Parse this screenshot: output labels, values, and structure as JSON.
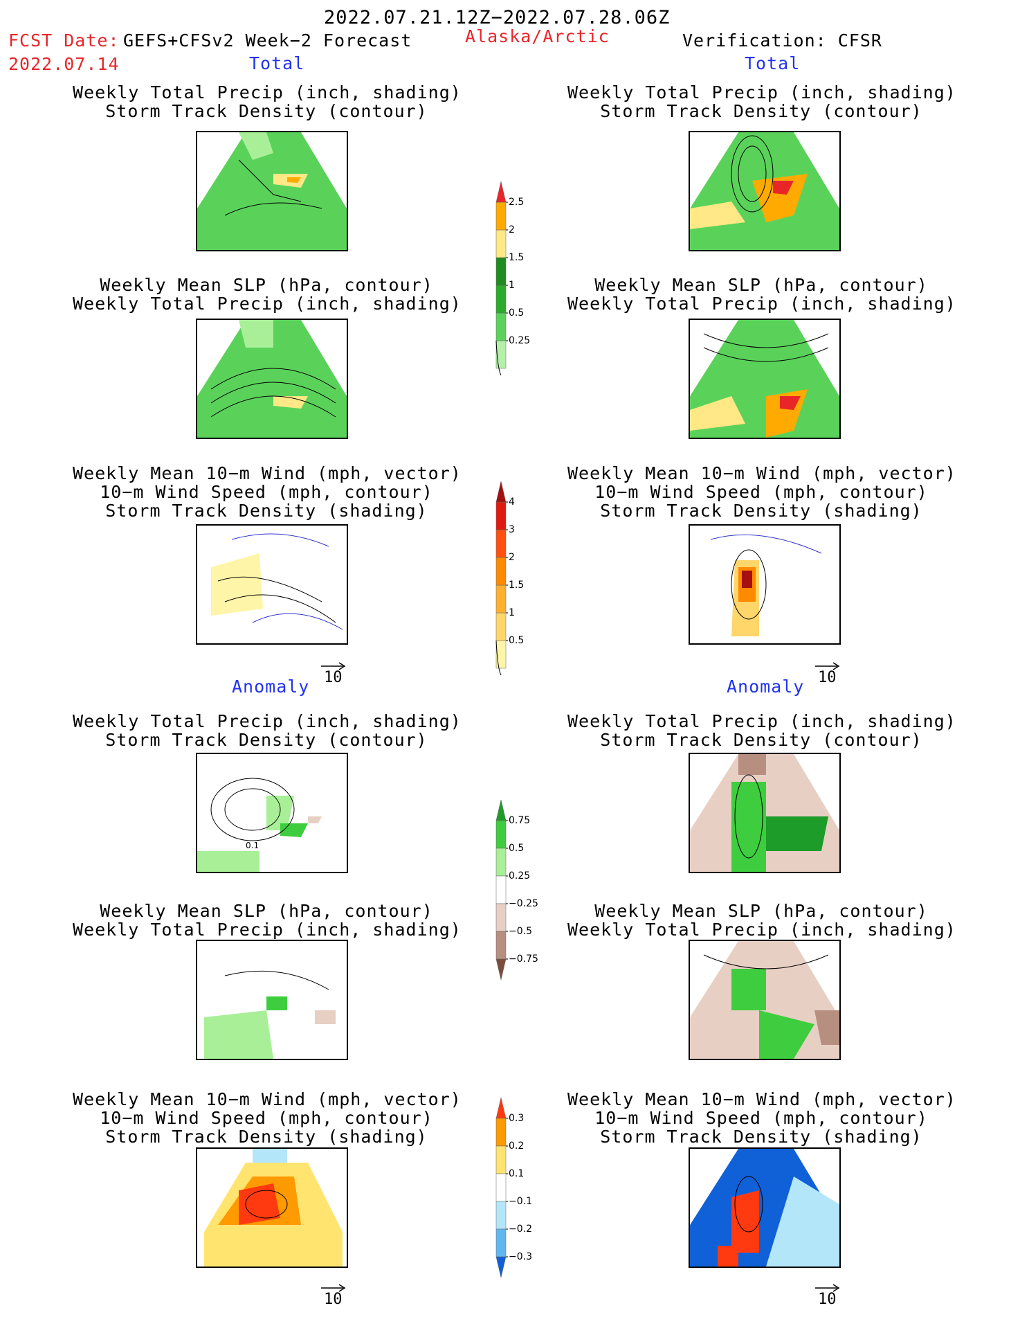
{
  "header": {
    "period": "2022.07.21.12Z−2022.07.28.06Z",
    "fcst_label": "FCST Date:",
    "fcst_model": "GEFS+CFSv2 Week−2 Forecast",
    "fcst_date": "2022.07.14",
    "region": "Alaska/Arctic",
    "verification": "Verification: CFSR"
  },
  "sections": {
    "total": "Total",
    "anomaly": "Anomaly"
  },
  "panel_titles": {
    "precip_track": [
      "Weekly Total Precip (inch, shading)",
      "Storm Track Density (contour)"
    ],
    "slp_precip": [
      "Weekly Mean SLP (hPa, contour)",
      "Weekly Total Precip (inch, shading)"
    ],
    "wind_track": [
      "Weekly Mean 10−m Wind (mph, vector)",
      "10−m Wind Speed (mph, contour)",
      "Storm Track Density (shading)"
    ]
  },
  "vector_key": "10",
  "contour_label": "0.1",
  "colorbars": {
    "total_precip": {
      "labels": [
        "0.25",
        "0.5",
        "1",
        "1.5",
        "2",
        "2.5"
      ],
      "colors": [
        "#b4f0a8",
        "#5ad25a",
        "#2aab2a",
        "#1e8c1e",
        "#ffe885",
        "#ffaa00",
        "#e8262a"
      ]
    },
    "total_storm": {
      "labels": [
        "0.5",
        "1",
        "1.5",
        "2",
        "3",
        "4"
      ],
      "colors": [
        "#fff5a8",
        "#ffd66a",
        "#ffb030",
        "#ff8a00",
        "#ff5010",
        "#e01a10",
        "#a50f0f"
      ]
    },
    "anom_precip": {
      "labels": [
        "0.75",
        "0.5",
        "0.25",
        "−0.25",
        "−0.5",
        "−0.75"
      ],
      "colors": [
        "#1e9c2a",
        "#3ecd3e",
        "#a8ef98",
        "#ffffff",
        "#e8cfc4",
        "#b78f80",
        "#7d4c3c"
      ]
    },
    "anom_storm": {
      "labels": [
        "0.3",
        "0.2",
        "0.1",
        "−0.1",
        "−0.2",
        "−0.3"
      ],
      "colors": [
        "#ff3a10",
        "#ff9a00",
        "#ffe470",
        "#ffffff",
        "#b4e6fa",
        "#60b6f0",
        "#1060d8"
      ]
    }
  }
}
